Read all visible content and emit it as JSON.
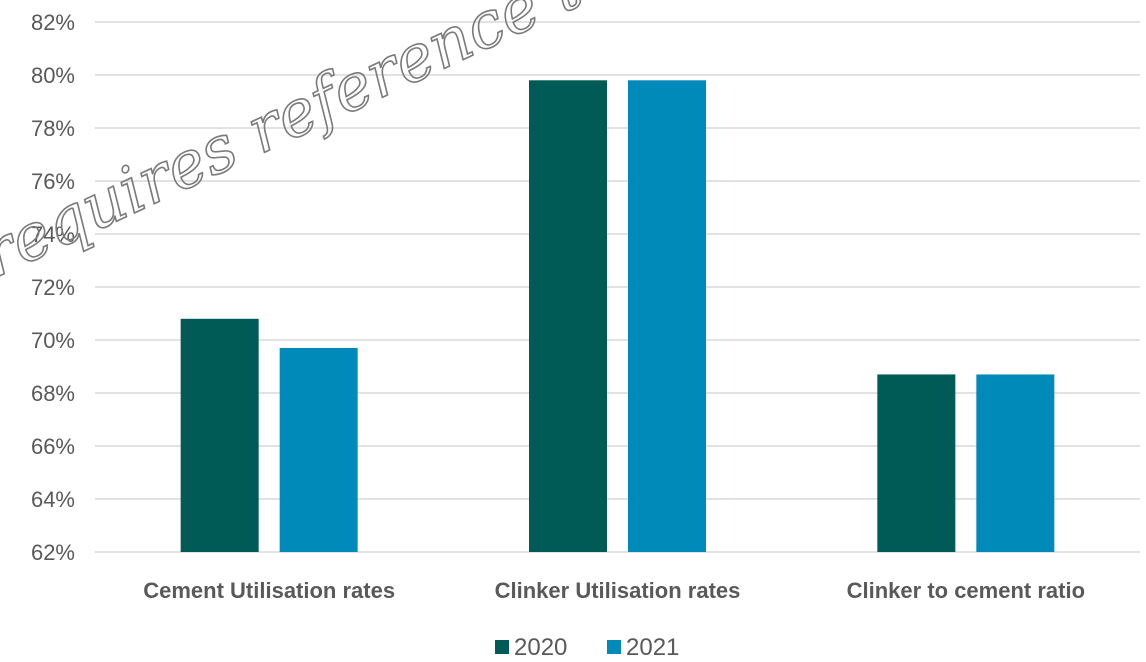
{
  "colors": {
    "series_2020": "#005a55",
    "series_2021": "#008ab9",
    "gridline": "#d9d9d9",
    "text": "#595959"
  },
  "watermark_text": "requires reference to",
  "chart_data": {
    "type": "bar",
    "title": "",
    "xlabel": "",
    "ylabel": "",
    "categories": [
      "Cement Utilisation rates",
      "Clinker Utilisation rates",
      "Clinker to cement ratio"
    ],
    "series": [
      {
        "name": "2020",
        "values": [
          70.8,
          79.8,
          68.7
        ]
      },
      {
        "name": "2021",
        "values": [
          69.7,
          79.8,
          68.7
        ]
      }
    ],
    "ylim": [
      62,
      82
    ],
    "ytick_step": 2,
    "ytick_labels": [
      "62%",
      "64%",
      "66%",
      "68%",
      "70%",
      "72%",
      "74%",
      "76%",
      "78%",
      "80%",
      "82%"
    ],
    "grid": true,
    "legend_position": "bottom"
  }
}
